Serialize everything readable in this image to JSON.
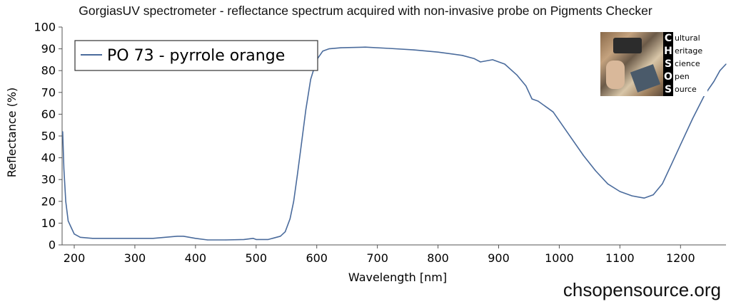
{
  "title": "GorgiasUV spectrometer - reflectance spectrum acquired with non-invasive probe on Pigments Checker",
  "footer": "chsopensource.org",
  "logo": {
    "letters": [
      "C",
      "H",
      "S",
      "O",
      "S"
    ],
    "words": [
      "ultural",
      "eritage",
      "cience",
      "pen",
      "ource"
    ],
    "colors": {
      "band": "#000000",
      "letters": "#ffffff"
    }
  },
  "chart_data": {
    "type": "line",
    "title": "GorgiasUV spectrometer - reflectance spectrum acquired with non-invasive probe on Pigments Checker",
    "xlabel": "Wavelength [nm]",
    "ylabel": "Reflectance (%)",
    "xlim": [
      180,
      1275
    ],
    "ylim": [
      0,
      100
    ],
    "xticks": [
      200,
      300,
      400,
      500,
      600,
      700,
      800,
      900,
      1000,
      1100,
      1200
    ],
    "yticks": [
      0,
      10,
      20,
      30,
      40,
      50,
      60,
      70,
      80,
      90,
      100
    ],
    "grid": false,
    "legend": {
      "placement": "top-left"
    },
    "series": [
      {
        "name": "PO 73 - pyrrole orange",
        "color": "#4a6b9c",
        "x": [
          181,
          183,
          186,
          190,
          195,
          200,
          210,
          230,
          260,
          300,
          330,
          350,
          370,
          380,
          400,
          420,
          450,
          480,
          495,
          500,
          520,
          540,
          548,
          556,
          562,
          568,
          575,
          582,
          590,
          600,
          610,
          620,
          640,
          680,
          720,
          760,
          800,
          840,
          860,
          870,
          890,
          910,
          930,
          945,
          955,
          965,
          980,
          990,
          1000,
          1020,
          1040,
          1060,
          1080,
          1100,
          1120,
          1140,
          1155,
          1170,
          1185,
          1200,
          1220,
          1240,
          1255,
          1265,
          1275
        ],
        "y": [
          52,
          35,
          20,
          11,
          8,
          5,
          3.5,
          3,
          3,
          3,
          3,
          3.5,
          4,
          4,
          3,
          2.3,
          2.3,
          2.5,
          3,
          2.5,
          2.5,
          4,
          6,
          12,
          20,
          32,
          47,
          62,
          76,
          85,
          89,
          90,
          90.5,
          90.8,
          90.2,
          89.5,
          88.5,
          87,
          85.5,
          84,
          85,
          83,
          78,
          73,
          67,
          66,
          63,
          61,
          57,
          49,
          41,
          34,
          28,
          24.5,
          22.5,
          21.5,
          23,
          28,
          37,
          46,
          58,
          69,
          75,
          80,
          83
        ]
      }
    ]
  }
}
